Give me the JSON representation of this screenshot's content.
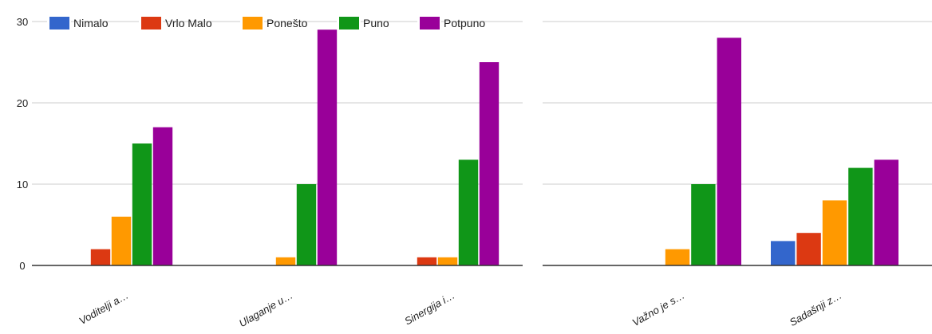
{
  "legend": [
    {
      "label": "Nimalo",
      "color": "#3366cc"
    },
    {
      "label": "Vrlo Malo",
      "color": "#dc3912"
    },
    {
      "label": "Ponešto",
      "color": "#ff9900"
    },
    {
      "label": "Puno",
      "color": "#109618"
    },
    {
      "label": "Potpuno",
      "color": "#990099"
    }
  ],
  "chart_data": [
    {
      "type": "bar",
      "title": "",
      "xlabel": "",
      "ylabel": "",
      "ylim": [
        0,
        30
      ],
      "yticks": [
        "0",
        "10",
        "20",
        "30"
      ],
      "grid": true,
      "legend_position": "top",
      "categories": [
        "Voditelji a…",
        "Ulaganje u…",
        "Sinergija i…"
      ],
      "series": [
        {
          "name": "Nimalo",
          "values": [
            0,
            0,
            0
          ]
        },
        {
          "name": "Vrlo Malo",
          "values": [
            2,
            0,
            1
          ]
        },
        {
          "name": "Ponešto",
          "values": [
            6,
            1,
            1
          ]
        },
        {
          "name": "Puno",
          "values": [
            15,
            10,
            13
          ]
        },
        {
          "name": "Potpuno",
          "values": [
            17,
            29,
            25
          ]
        }
      ]
    },
    {
      "type": "bar",
      "title": "",
      "xlabel": "",
      "ylabel": "",
      "ylim": [
        0,
        30
      ],
      "grid": true,
      "categories": [
        "Važno je s…",
        "Sadašnji z…"
      ],
      "series": [
        {
          "name": "Nimalo",
          "values": [
            0,
            3
          ]
        },
        {
          "name": "Vrlo Malo",
          "values": [
            0,
            4
          ]
        },
        {
          "name": "Ponešto",
          "values": [
            2,
            8
          ]
        },
        {
          "name": "Puno",
          "values": [
            10,
            12
          ]
        },
        {
          "name": "Potpuno",
          "values": [
            28,
            13
          ]
        }
      ]
    }
  ]
}
